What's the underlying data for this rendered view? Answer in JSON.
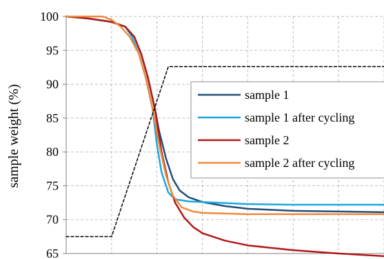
{
  "chart_data": {
    "type": "line",
    "ylabel": "sample weight (%)",
    "xlabel": "",
    "ylim": [
      65,
      100
    ],
    "xlim": [
      0,
      7
    ],
    "yticks": [
      65,
      70,
      75,
      80,
      85,
      90,
      95,
      100
    ],
    "grid": true,
    "legend_position": "right",
    "series": [
      {
        "name": "sample 1",
        "color": "#1f4e79",
        "points": [
          [
            0,
            100
          ],
          [
            0.5,
            99.7
          ],
          [
            1.0,
            99.2
          ],
          [
            1.3,
            98.5
          ],
          [
            1.5,
            97.0
          ],
          [
            1.65,
            94.5
          ],
          [
            1.8,
            91.0
          ],
          [
            1.95,
            86.5
          ],
          [
            2.05,
            83.0
          ],
          [
            2.2,
            79.0
          ],
          [
            2.35,
            76.0
          ],
          [
            2.5,
            74.3
          ],
          [
            2.7,
            73.3
          ],
          [
            3.0,
            72.6
          ],
          [
            3.5,
            72.0
          ],
          [
            4.0,
            71.6
          ],
          [
            5.0,
            71.3
          ],
          [
            6.0,
            71.2
          ],
          [
            7.0,
            71.1
          ]
        ]
      },
      {
        "name": "sample 1 after cycling",
        "color": "#1aa7dc",
        "points": [
          [
            0,
            100
          ],
          [
            0.5,
            99.7
          ],
          [
            1.0,
            99.2
          ],
          [
            1.3,
            98.5
          ],
          [
            1.45,
            97.0
          ],
          [
            1.6,
            94.5
          ],
          [
            1.75,
            91.0
          ],
          [
            1.9,
            86.5
          ],
          [
            2.0,
            81.0
          ],
          [
            2.1,
            77.0
          ],
          [
            2.25,
            74.0
          ],
          [
            2.4,
            73.0
          ],
          [
            2.7,
            72.7
          ],
          [
            3.0,
            72.6
          ],
          [
            4.0,
            72.3
          ],
          [
            5.0,
            72.2
          ],
          [
            6.0,
            72.2
          ],
          [
            7.0,
            72.2
          ]
        ]
      },
      {
        "name": "sample 2",
        "color": "#b01717",
        "points": [
          [
            0,
            100
          ],
          [
            0.5,
            99.7
          ],
          [
            1.0,
            99.2
          ],
          [
            1.3,
            98.5
          ],
          [
            1.5,
            97.0
          ],
          [
            1.65,
            94.5
          ],
          [
            1.8,
            91.0
          ],
          [
            1.95,
            86.5
          ],
          [
            2.1,
            80.0
          ],
          [
            2.25,
            75.5
          ],
          [
            2.4,
            72.5
          ],
          [
            2.6,
            70.3
          ],
          [
            2.8,
            68.9
          ],
          [
            3.0,
            68.0
          ],
          [
            3.5,
            66.9
          ],
          [
            4.0,
            66.2
          ],
          [
            5.0,
            65.5
          ],
          [
            6.0,
            65.0
          ],
          [
            7.0,
            64.6
          ]
        ]
      },
      {
        "name": "sample 2 after cycling",
        "color": "#ee8a3a",
        "points": [
          [
            0,
            100
          ],
          [
            0.8,
            100
          ],
          [
            1.0,
            99.5
          ],
          [
            1.2,
            98.5
          ],
          [
            1.4,
            97.0
          ],
          [
            1.6,
            94.5
          ],
          [
            1.75,
            91.0
          ],
          [
            1.9,
            86.5
          ],
          [
            2.05,
            81.0
          ],
          [
            2.2,
            76.5
          ],
          [
            2.35,
            73.5
          ],
          [
            2.55,
            71.8
          ],
          [
            2.8,
            71.2
          ],
          [
            3.0,
            71.0
          ],
          [
            4.0,
            70.8
          ],
          [
            5.0,
            70.8
          ],
          [
            6.0,
            70.8
          ],
          [
            7.0,
            70.8
          ]
        ]
      },
      {
        "name": "",
        "color": "#000000",
        "dashed": true,
        "points": [
          [
            0,
            67.5
          ],
          [
            1.0,
            67.5
          ],
          [
            2.25,
            92.6
          ],
          [
            7.0,
            92.6
          ]
        ]
      }
    ]
  }
}
